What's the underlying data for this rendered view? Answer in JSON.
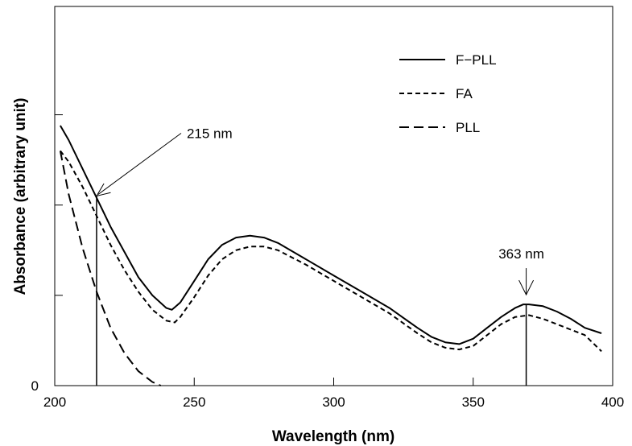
{
  "chart_data": {
    "type": "line",
    "title": "",
    "xlabel": "Wavelength (nm)",
    "ylabel": "Absorbance (arbitrary unit)",
    "xlim": [
      200,
      400
    ],
    "ylim": [
      0,
      1.05
    ],
    "x_ticks": [
      "200",
      "250",
      "300",
      "350",
      "400"
    ],
    "y_tick_values": [
      0,
      0.25,
      0.5,
      0.75
    ],
    "y_tick_labels": [
      "0",
      "",
      "",
      ""
    ],
    "grid": false,
    "legend_position": "top-right",
    "series": [
      {
        "name": "F−PLL",
        "style": "solid",
        "x": [
          202,
          205,
          210,
          215,
          220,
          225,
          230,
          235,
          240,
          242,
          245,
          250,
          255,
          260,
          265,
          270,
          275,
          280,
          290,
          300,
          310,
          320,
          330,
          335,
          340,
          345,
          350,
          355,
          360,
          365,
          368,
          370,
          375,
          380,
          385,
          390,
          396
        ],
        "y": [
          0.72,
          0.68,
          0.6,
          0.52,
          0.44,
          0.37,
          0.3,
          0.25,
          0.215,
          0.21,
          0.23,
          0.29,
          0.35,
          0.39,
          0.41,
          0.415,
          0.41,
          0.395,
          0.35,
          0.305,
          0.26,
          0.215,
          0.16,
          0.135,
          0.12,
          0.115,
          0.13,
          0.16,
          0.19,
          0.215,
          0.225,
          0.225,
          0.22,
          0.205,
          0.185,
          0.16,
          0.145
        ]
      },
      {
        "name": "FA",
        "style": "dotted",
        "x": [
          202,
          205,
          210,
          215,
          220,
          225,
          230,
          235,
          240,
          243,
          245,
          250,
          255,
          260,
          265,
          270,
          275,
          280,
          290,
          300,
          310,
          320,
          330,
          335,
          340,
          345,
          350,
          355,
          360,
          365,
          370,
          375,
          380,
          385,
          390,
          396
        ],
        "y": [
          0.65,
          0.62,
          0.55,
          0.47,
          0.39,
          0.32,
          0.26,
          0.21,
          0.18,
          0.175,
          0.19,
          0.245,
          0.305,
          0.35,
          0.375,
          0.385,
          0.385,
          0.375,
          0.335,
          0.29,
          0.245,
          0.2,
          0.145,
          0.12,
          0.105,
          0.1,
          0.11,
          0.14,
          0.17,
          0.19,
          0.195,
          0.185,
          0.17,
          0.155,
          0.14,
          0.095
        ]
      },
      {
        "name": "PLL",
        "style": "dashed",
        "x": [
          202,
          205,
          210,
          215,
          220,
          225,
          230,
          235,
          238
        ],
        "y": [
          0.65,
          0.53,
          0.38,
          0.26,
          0.16,
          0.09,
          0.04,
          0.01,
          0.0
        ]
      }
    ],
    "annotations": [
      {
        "label": "215 nm",
        "x": 215,
        "y": 0.525,
        "kind": "arrow-diagonal"
      },
      {
        "label": "363 nm",
        "x": 369,
        "y": 0.225,
        "kind": "arrow-vertical"
      }
    ]
  }
}
